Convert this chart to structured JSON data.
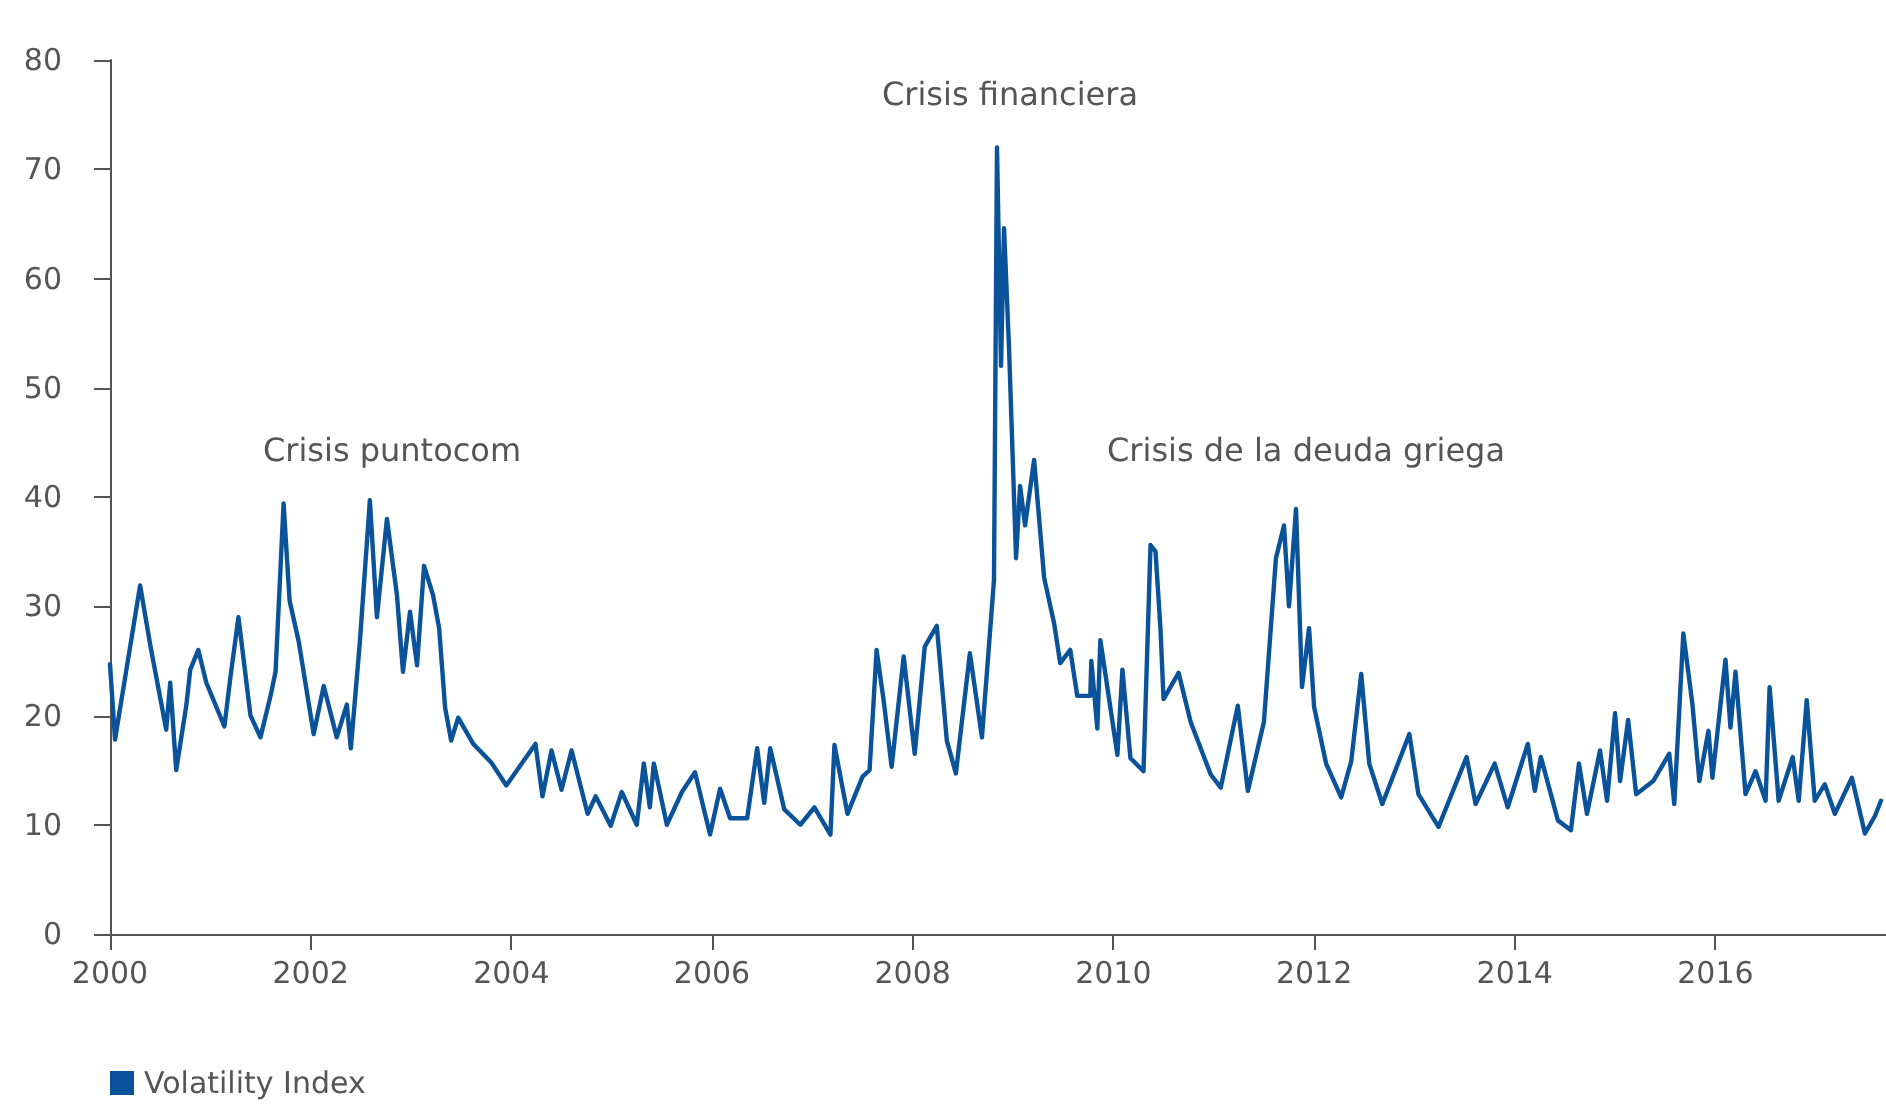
{
  "chart_data": {
    "type": "line",
    "xlim": [
      2000,
      2017.7
    ],
    "xticks": [
      2000,
      2002,
      2004,
      2006,
      2008,
      2010,
      2012,
      2014,
      2016
    ],
    "ylim": [
      0,
      80
    ],
    "yticks": [
      0,
      10,
      20,
      30,
      40,
      50,
      60,
      70,
      80
    ],
    "grid": false,
    "legend": "bottom left",
    "marker": "none",
    "line_style": "solid",
    "annotations": [
      "Crisis puntocom",
      "Crisis financiera",
      "Crisis de la deuda griega"
    ],
    "series": [
      {
        "name": "Volatility Index",
        "color": "#0a5299",
        "x": [
          2000.0,
          2000.05,
          2000.3,
          2000.4,
          2000.56,
          2000.6,
          2000.66,
          2000.76,
          2000.8,
          2000.88,
          2000.96,
          2001.14,
          2001.2,
          2001.28,
          2001.4,
          2001.5,
          2001.6,
          2001.65,
          2001.73,
          2001.79,
          2001.88,
          2002.03,
          2002.13,
          2002.26,
          2002.36,
          2002.4,
          2002.49,
          2002.59,
          2002.66,
          2002.76,
          2002.86,
          2002.92,
          2002.99,
          2003.06,
          2003.13,
          2003.22,
          2003.28,
          2003.34,
          2003.4,
          2003.47,
          2003.62,
          2003.8,
          2003.95,
          2004.24,
          2004.31,
          2004.4,
          2004.5,
          2004.6,
          2004.76,
          2004.84,
          2004.99,
          2005.1,
          2005.25,
          2005.32,
          2005.38,
          2005.42,
          2005.55,
          2005.7,
          2005.83,
          2005.98,
          2006.08,
          2006.18,
          2006.35,
          2006.45,
          2006.52,
          2006.58,
          2006.72,
          2006.88,
          2007.02,
          2007.18,
          2007.22,
          2007.35,
          2007.5,
          2007.57,
          2007.64,
          2007.71,
          2007.79,
          2007.91,
          2008.02,
          2008.12,
          2008.24,
          2008.34,
          2008.43,
          2008.57,
          2008.69,
          2008.81,
          2008.84,
          2008.88,
          2008.91,
          2008.96,
          2009.03,
          2009.07,
          2009.12,
          2009.21,
          2009.31,
          2009.41,
          2009.47,
          2009.57,
          2009.64,
          2009.77,
          2009.78,
          2009.84,
          2009.87,
          2010.04,
          2010.09,
          2010.17,
          2010.3,
          2010.37,
          2010.42,
          2010.47,
          2010.5,
          2010.65,
          2010.77,
          2010.97,
          2011.07,
          2011.24,
          2011.34,
          2011.5,
          2011.62,
          2011.7,
          2011.75,
          2011.82,
          2011.88,
          2011.95,
          2012.0,
          2012.12,
          2012.27,
          2012.37,
          2012.47,
          2012.55,
          2012.68,
          2012.95,
          2013.04,
          2013.24,
          2013.52,
          2013.61,
          2013.8,
          2013.93,
          2014.13,
          2014.2,
          2014.26,
          2014.43,
          2014.56,
          2014.64,
          2014.72,
          2014.85,
          2014.92,
          2015.0,
          2015.05,
          2015.13,
          2015.21,
          2015.38,
          2015.54,
          2015.59,
          2015.68,
          2015.77,
          2015.84,
          2015.93,
          2015.97,
          2016.1,
          2016.15,
          2016.2,
          2016.3,
          2016.4,
          2016.5,
          2016.54,
          2016.63,
          2016.77,
          2016.83,
          2016.91,
          2016.99,
          2017.09,
          2017.19,
          2017.36,
          2017.49,
          2017.59,
          2017.65
        ],
        "values": [
          24.7,
          17.8,
          31.9,
          26.5,
          18.7,
          23,
          15,
          20.9,
          24.2,
          26,
          23,
          19,
          23.5,
          29,
          20,
          18,
          21.8,
          24,
          39.4,
          30.5,
          26.8,
          18.3,
          22.7,
          18,
          21,
          17,
          26.7,
          39.7,
          29,
          38,
          31,
          24,
          29.5,
          24.6,
          33.7,
          31,
          28,
          20.7,
          17.7,
          19.8,
          17.4,
          15.7,
          13.6,
          17.4,
          12.6,
          16.8,
          13.2,
          16.8,
          11,
          12.6,
          9.9,
          13,
          10,
          15.6,
          11.6,
          15.6,
          10,
          13,
          14.8,
          9.1,
          13.3,
          10.6,
          10.6,
          17,
          12,
          17,
          11.4,
          10,
          11.6,
          9.1,
          17.3,
          11,
          14.4,
          15,
          26,
          21.4,
          15.3,
          25.4,
          16.5,
          26.3,
          28.2,
          17.7,
          14.7,
          25.7,
          18,
          32.4,
          72,
          52,
          64.6,
          53.6,
          34.4,
          41,
          37.4,
          43.4,
          32.6,
          28.4,
          24.8,
          26,
          21.8,
          21.8,
          25,
          18.8,
          26.9,
          16.4,
          24.2,
          16.1,
          14.9,
          35.6,
          35,
          27.8,
          21.5,
          23.9,
          19.4,
          14.6,
          13.4,
          20.9,
          13.1,
          19.4,
          34.4,
          37.4,
          30,
          38.9,
          22.6,
          28,
          20.8,
          15.6,
          12.5,
          15.8,
          23.8,
          15.6,
          11.9,
          18.3,
          12.8,
          9.8,
          16.2,
          11.9,
          15.6,
          11.6,
          17.4,
          13.1,
          16.2,
          10.4,
          9.5,
          15.6,
          11,
          16.8,
          12.2,
          20.2,
          14,
          19.6,
          12.8,
          14,
          16.5,
          11.9,
          27.5,
          21.1,
          14,
          18.6,
          14.3,
          25.1,
          18.9,
          24,
          12.8,
          14.9,
          12.2,
          22.6,
          12.2,
          16.2,
          12.2,
          21.4,
          12.2,
          13.7,
          11,
          14.3,
          9.2,
          10.8,
          12.2
        ]
      }
    ]
  }
}
